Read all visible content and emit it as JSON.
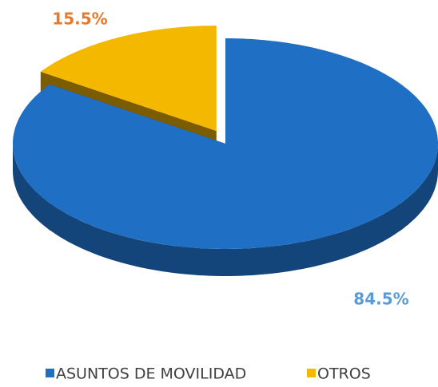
{
  "chart_data": {
    "type": "pie",
    "categories": [
      "ASUNTOS DE MOVILIDAD",
      "OTROS"
    ],
    "values": [
      84.5,
      15.5
    ],
    "value_labels": [
      "84.5%",
      "15.5%"
    ],
    "colors": [
      "#1f6fc5",
      "#f5b800"
    ],
    "label_colors": [
      "#5b9bd5",
      "#e8792a"
    ],
    "legend": "bottom"
  }
}
